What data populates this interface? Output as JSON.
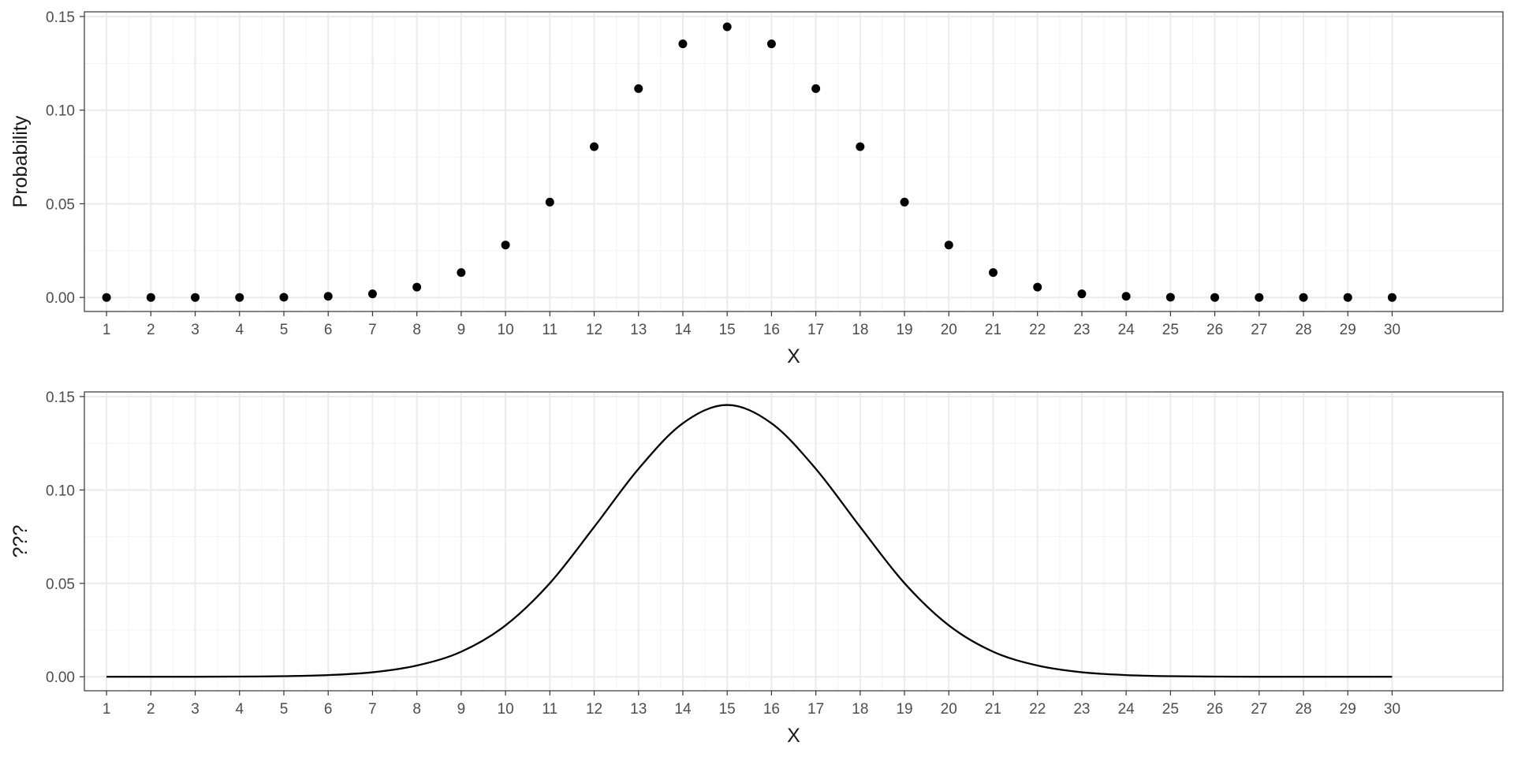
{
  "chart_data": [
    {
      "type": "scatter",
      "xlabel": "X",
      "ylabel": "Probability",
      "xlim": [
        0.5,
        32.5
      ],
      "ylim": [
        -0.0075,
        0.1525
      ],
      "x_ticks": [
        1,
        2,
        3,
        4,
        5,
        6,
        7,
        8,
        9,
        10,
        11,
        12,
        13,
        14,
        15,
        16,
        17,
        18,
        19,
        20,
        21,
        22,
        23,
        24,
        25,
        26,
        27,
        28,
        29,
        30
      ],
      "y_ticks": [
        0.0,
        0.05,
        0.1,
        0.15
      ],
      "y_tick_labels": [
        "0.00",
        "0.05",
        "0.10",
        "0.15"
      ],
      "grid": true,
      "point_color": "#000000",
      "x": [
        1,
        2,
        3,
        4,
        5,
        6,
        7,
        8,
        9,
        10,
        11,
        12,
        13,
        14,
        15,
        16,
        17,
        18,
        19,
        20,
        21,
        22,
        23,
        24,
        25,
        26,
        27,
        28,
        29,
        30
      ],
      "y": [
        0.0,
        0.0,
        0.0,
        0.0,
        0.0001,
        0.0006,
        0.0019,
        0.0055,
        0.0133,
        0.028,
        0.0509,
        0.0805,
        0.1115,
        0.1354,
        0.1445,
        0.1354,
        0.1115,
        0.0805,
        0.0509,
        0.028,
        0.0133,
        0.0055,
        0.0019,
        0.0006,
        0.0001,
        0.0,
        0.0,
        0.0,
        0.0,
        0.0
      ]
    },
    {
      "type": "line",
      "xlabel": "X",
      "ylabel": "???",
      "xlim": [
        0.5,
        32.5
      ],
      "ylim": [
        -0.0075,
        0.1525
      ],
      "x_ticks": [
        1,
        2,
        3,
        4,
        5,
        6,
        7,
        8,
        9,
        10,
        11,
        12,
        13,
        14,
        15,
        16,
        17,
        18,
        19,
        20,
        21,
        22,
        23,
        24,
        25,
        26,
        27,
        28,
        29,
        30
      ],
      "y_ticks": [
        0.0,
        0.05,
        0.1,
        0.15
      ],
      "y_tick_labels": [
        "0.00",
        "0.05",
        "0.10",
        "0.15"
      ],
      "grid": true,
      "line_color": "#000000",
      "x": [
        1,
        2,
        3,
        4,
        5,
        6,
        7,
        8,
        9,
        10,
        11,
        12,
        13,
        14,
        15,
        16,
        17,
        18,
        19,
        20,
        21,
        22,
        23,
        24,
        25,
        26,
        27,
        28,
        29,
        30
      ],
      "y": [
        0.0,
        0.0,
        0.0,
        0.0001,
        0.0003,
        0.0009,
        0.0024,
        0.006,
        0.0134,
        0.0275,
        0.0501,
        0.0802,
        0.1113,
        0.1357,
        0.1455,
        0.1357,
        0.1113,
        0.0802,
        0.0501,
        0.0275,
        0.0134,
        0.006,
        0.0024,
        0.0009,
        0.0003,
        0.0001,
        0.0,
        0.0,
        0.0,
        0.0
      ]
    }
  ]
}
